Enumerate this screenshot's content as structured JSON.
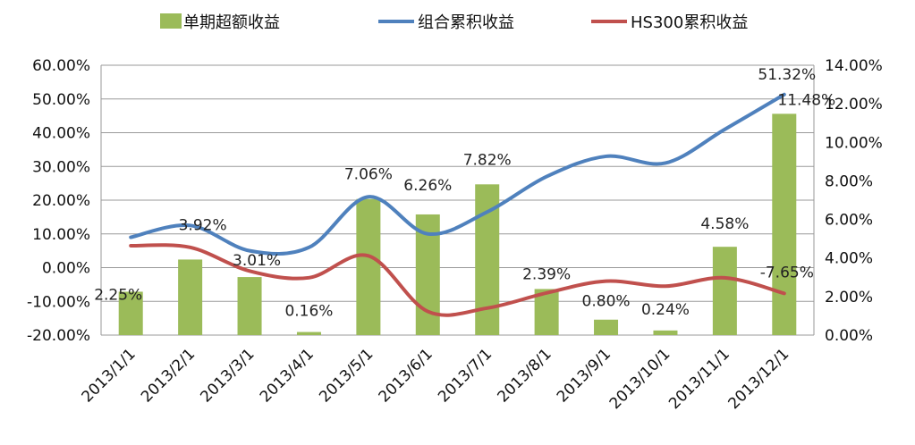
{
  "chart_data": {
    "type": "bar",
    "categories": [
      "2013/1/1",
      "2013/2/1",
      "2013/3/1",
      "2013/4/1",
      "2013/5/1",
      "2013/6/1",
      "2013/7/1",
      "2013/8/1",
      "2013/9/1",
      "2013/10/1",
      "2013/11/1",
      "2013/12/1"
    ],
    "left_axis": {
      "ylim": [
        -20,
        60
      ],
      "ticks": [
        "60.00%",
        "50.00%",
        "40.00%",
        "30.00%",
        "20.00%",
        "10.00%",
        "0.00%",
        "-10.00%",
        "-20.00%"
      ],
      "tick_values": [
        60,
        50,
        40,
        30,
        20,
        10,
        0,
        -10,
        -20
      ]
    },
    "right_axis": {
      "ylim": [
        0,
        14
      ],
      "ticks": [
        "14.00%",
        "12.00%",
        "10.00%",
        "8.00%",
        "6.00%",
        "4.00%",
        "2.00%",
        "0.00%"
      ],
      "tick_values": [
        14,
        12,
        10,
        8,
        6,
        4,
        2,
        0
      ]
    },
    "series": [
      {
        "name": "单期超额收益",
        "type": "bar",
        "axis": "right",
        "color": "#9BBB59",
        "values": [
          2.25,
          3.92,
          3.01,
          0.16,
          7.06,
          6.26,
          7.82,
          2.39,
          0.8,
          0.24,
          4.58,
          11.48
        ],
        "labels": [
          "2.25%",
          "3.92%",
          "3.01%",
          "0.16%",
          "7.06%",
          "6.26%",
          "7.82%",
          "2.39%",
          "0.80%",
          "0.24%",
          "4.58%",
          "11.48%"
        ]
      },
      {
        "name": "组合累积收益",
        "type": "line",
        "axis": "left",
        "color": "#4F81BD",
        "values": [
          9,
          12.5,
          5,
          6,
          21,
          10,
          16.5,
          27,
          33,
          31,
          41,
          51.32
        ],
        "end_label": "51.32%",
        "end_label_color": "#FF0000"
      },
      {
        "name": "HS300累积收益",
        "type": "line",
        "axis": "left",
        "color": "#C0504D",
        "values": [
          6.5,
          6,
          -1,
          -3,
          3.5,
          -13,
          -12,
          -7.5,
          -4,
          -5.5,
          -3,
          -7.65
        ],
        "end_label": "-7.65%",
        "end_label_color": "#FF0000"
      }
    ],
    "legend_position": "top"
  }
}
